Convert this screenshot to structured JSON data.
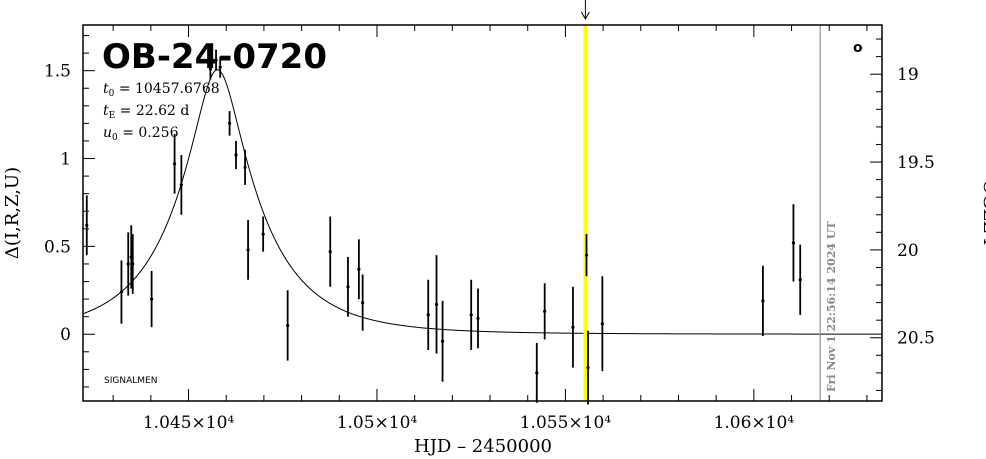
{
  "chart_data": {
    "type": "scatter",
    "title": "OB-24-0720",
    "params": {
      "t0": "10457.6768",
      "tE": "22.62 d",
      "u0": "0.256"
    },
    "xlabel": "HJD – 2450000",
    "ylabel": "Δ(I,R,Z,U)",
    "ylabel_right": "OGLE I",
    "xlim": [
      10422,
      10634
    ],
    "ylim": [
      -0.38,
      1.76
    ],
    "right_ylim": [
      20.86,
      18.72
    ],
    "x_ticks": [
      {
        "value": 10450,
        "label": "1.045×10⁴"
      },
      {
        "value": 10500,
        "label": "1.05×10⁴"
      },
      {
        "value": 10550,
        "label": "1.055×10⁴"
      },
      {
        "value": 10600,
        "label": "1.06×10⁴"
      }
    ],
    "y_ticks": [
      {
        "value": 0,
        "label": "0"
      },
      {
        "value": 0.5,
        "label": "0.5"
      },
      {
        "value": 1,
        "label": "1"
      },
      {
        "value": 1.5,
        "label": "1.5"
      }
    ],
    "right_y_ticks": [
      {
        "value": 19,
        "label": "19"
      },
      {
        "value": 19.5,
        "label": "19.5"
      },
      {
        "value": 20,
        "label": "20"
      },
      {
        "value": 20.5,
        "label": "20.5"
      }
    ],
    "model": {
      "t0": 10457.6768,
      "tE": 22.62,
      "u0": 0.256
    },
    "points": [
      {
        "x": 10423.0,
        "y": 0.62,
        "err": 0.17
      },
      {
        "x": 10432.2,
        "y": 0.24,
        "err": 0.18
      },
      {
        "x": 10434.0,
        "y": 0.4,
        "err": 0.18
      },
      {
        "x": 10434.8,
        "y": 0.44,
        "err": 0.18
      },
      {
        "x": 10435.2,
        "y": 0.4,
        "err": 0.17
      },
      {
        "x": 10440.2,
        "y": 0.2,
        "err": 0.16
      },
      {
        "x": 10446.3,
        "y": 0.97,
        "err": 0.17
      },
      {
        "x": 10448.1,
        "y": 0.85,
        "err": 0.17
      },
      {
        "x": 10455.8,
        "y": 1.51,
        "err": 0.06
      },
      {
        "x": 10457.3,
        "y": 1.56,
        "err": 0.06
      },
      {
        "x": 10458.4,
        "y": 1.52,
        "err": 0.06
      },
      {
        "x": 10460.9,
        "y": 1.2,
        "err": 0.07
      },
      {
        "x": 10462.6,
        "y": 1.02,
        "err": 0.08
      },
      {
        "x": 10465.0,
        "y": 0.95,
        "err": 0.1
      },
      {
        "x": 10465.8,
        "y": 0.48,
        "err": 0.17
      },
      {
        "x": 10469.8,
        "y": 0.57,
        "err": 0.1
      },
      {
        "x": 10476.3,
        "y": 0.05,
        "err": 0.2
      },
      {
        "x": 10487.6,
        "y": 0.47,
        "err": 0.2
      },
      {
        "x": 10492.3,
        "y": 0.27,
        "err": 0.17
      },
      {
        "x": 10495.2,
        "y": 0.37,
        "err": 0.17
      },
      {
        "x": 10496.2,
        "y": 0.18,
        "err": 0.16
      },
      {
        "x": 10513.6,
        "y": 0.11,
        "err": 0.2
      },
      {
        "x": 10515.8,
        "y": 0.17,
        "err": 0.28
      },
      {
        "x": 10517.4,
        "y": -0.04,
        "err": 0.23
      },
      {
        "x": 10525.0,
        "y": 0.11,
        "err": 0.2
      },
      {
        "x": 10526.8,
        "y": 0.09,
        "err": 0.17
      },
      {
        "x": 10542.4,
        "y": -0.22,
        "err": 0.17
      },
      {
        "x": 10544.5,
        "y": 0.13,
        "err": 0.16
      },
      {
        "x": 10552.0,
        "y": 0.04,
        "err": 0.23
      },
      {
        "x": 10555.6,
        "y": 0.45,
        "err": 0.12
      },
      {
        "x": 10556.0,
        "y": -0.19,
        "err": 0.21
      },
      {
        "x": 10559.8,
        "y": 0.06,
        "err": 0.27
      },
      {
        "x": 10602.4,
        "y": 0.19,
        "err": 0.2
      },
      {
        "x": 10610.5,
        "y": 0.52,
        "err": 0.22
      },
      {
        "x": 10612.3,
        "y": 0.31,
        "err": 0.2
      }
    ],
    "current_epoch": 10555.3,
    "now_line_x": 10617.6,
    "now_label": "Fri Nov  1 22:56:14 2024 UT",
    "corner_note": "SIGNALMEN",
    "colors": {
      "model": "#000000",
      "points": "#000000",
      "current_epoch": "#ffff00",
      "now_line": "#999999"
    }
  },
  "corner_marker": "o"
}
